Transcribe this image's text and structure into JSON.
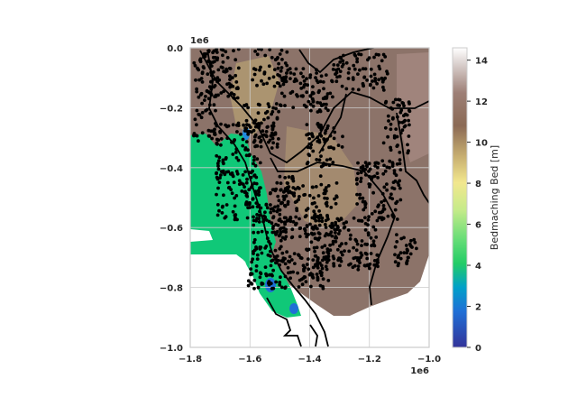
{
  "chart_data": {
    "type": "heatmap",
    "title": "",
    "xlabel": "",
    "ylabel": "",
    "x_offset_text": "1e6",
    "y_offset_text": "1e6",
    "xlim": [
      -1.8,
      -1.0
    ],
    "ylim": [
      -1.0,
      0.0
    ],
    "x_ticks": [
      -1.8,
      -1.6,
      -1.4,
      -1.2,
      -1.0
    ],
    "x_tick_labels": [
      "−1.8",
      "−1.6",
      "−1.4",
      "−1.2",
      "−1.0"
    ],
    "y_ticks": [
      0.0,
      -0.2,
      -0.4,
      -0.6,
      -0.8,
      -1.0
    ],
    "y_tick_labels": [
      "0.0",
      "−0.2",
      "−0.4",
      "−0.6",
      "−0.8",
      "−1.0"
    ],
    "grid": true,
    "colorbar": {
      "label": "Bedmaching Bed [m]",
      "range": [
        0,
        14.6
      ],
      "ticks": [
        0,
        2,
        4,
        6,
        8,
        10,
        12,
        14
      ],
      "tick_labels": [
        "0",
        "2",
        "4",
        "6",
        "8",
        "10",
        "12",
        "14"
      ],
      "colormap": "terrain"
    },
    "overlay": {
      "points": "black dots over much of the domain",
      "outlines": "black catchment boundary lines"
    }
  },
  "colors": {
    "brown": "#8b7268",
    "green": "#10c878",
    "blue": "#1a7ad8",
    "tan": "#b49a6e",
    "point": "#000000"
  }
}
